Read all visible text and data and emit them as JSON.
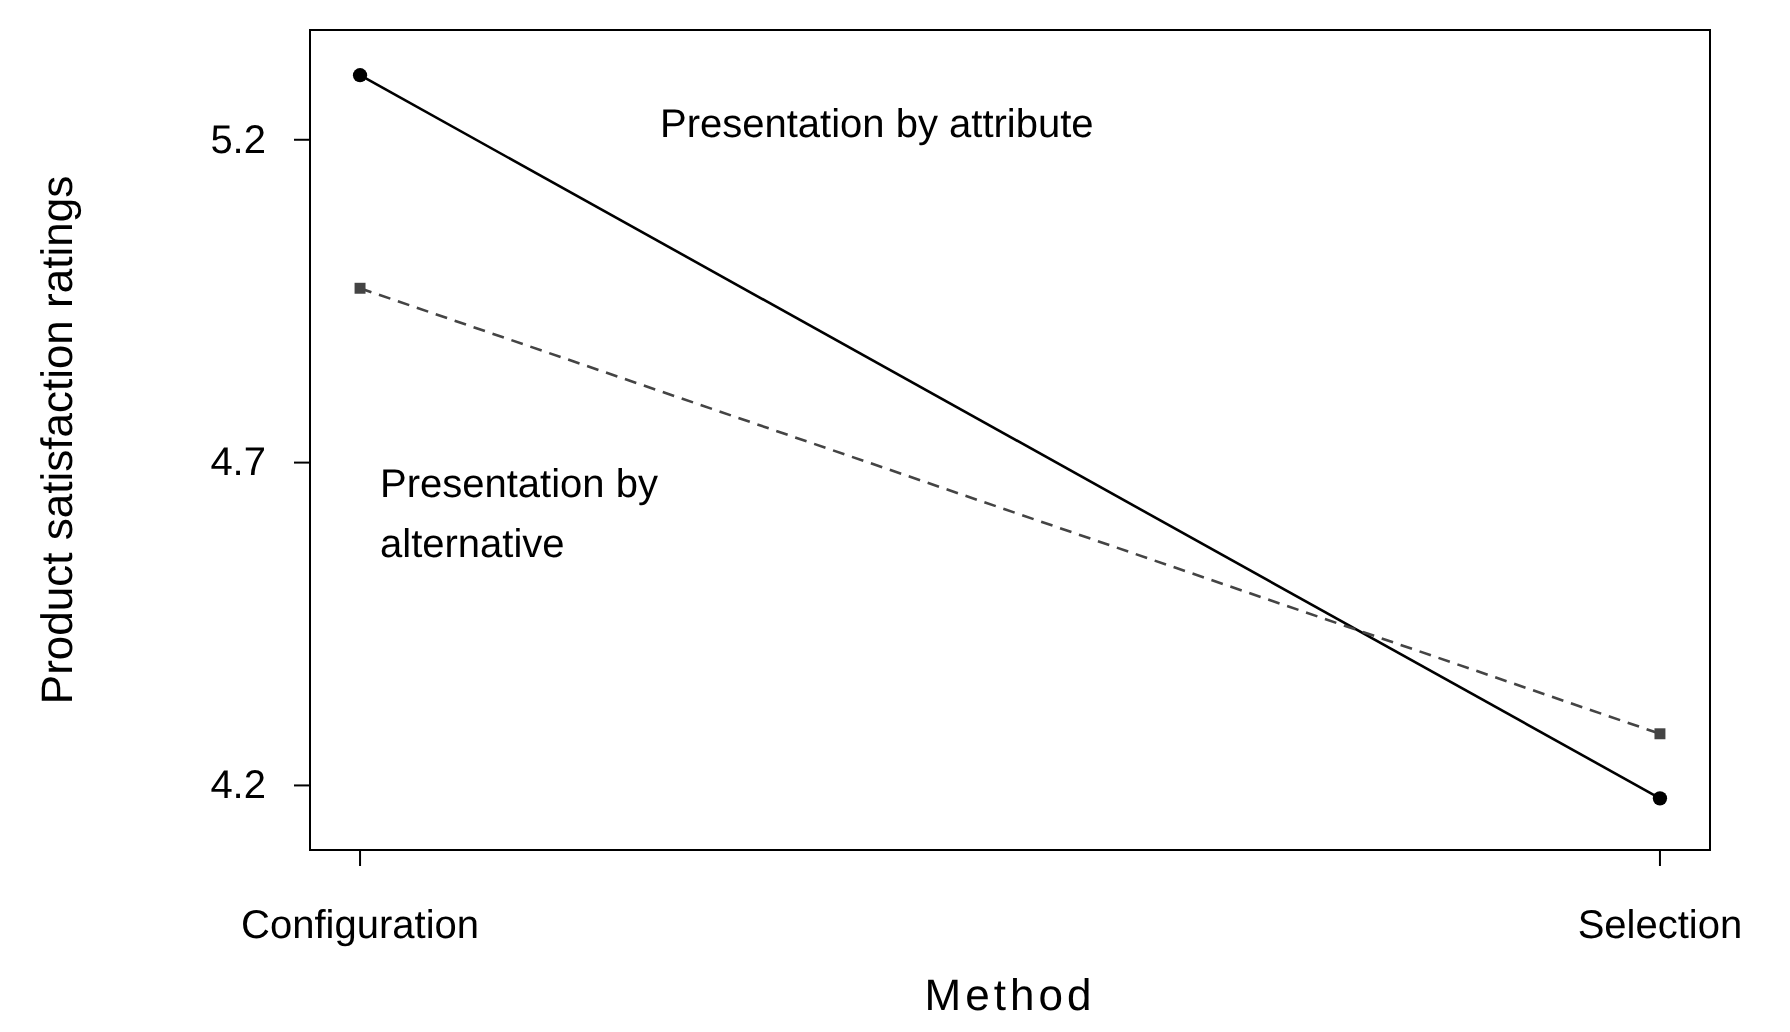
{
  "chart_data": {
    "type": "line",
    "xlabel": "Method",
    "ylabel": "Product satisfaction ratings",
    "categories": [
      "Configuration",
      "Selection"
    ],
    "series": [
      {
        "name": "Presentation by attribute",
        "color": "#000000",
        "values": [
          5.3,
          4.18
        ],
        "marker": "circle",
        "line_style": "solid"
      },
      {
        "name": "Presentation by alternative",
        "color": "#444444",
        "values": [
          4.97,
          4.28
        ],
        "marker": "square",
        "line_style": "dashed"
      }
    ],
    "ylim": [
      4.1,
      5.37
    ],
    "yticks": [
      4.2,
      4.7,
      5.2
    ],
    "grid": false,
    "legend": false
  }
}
